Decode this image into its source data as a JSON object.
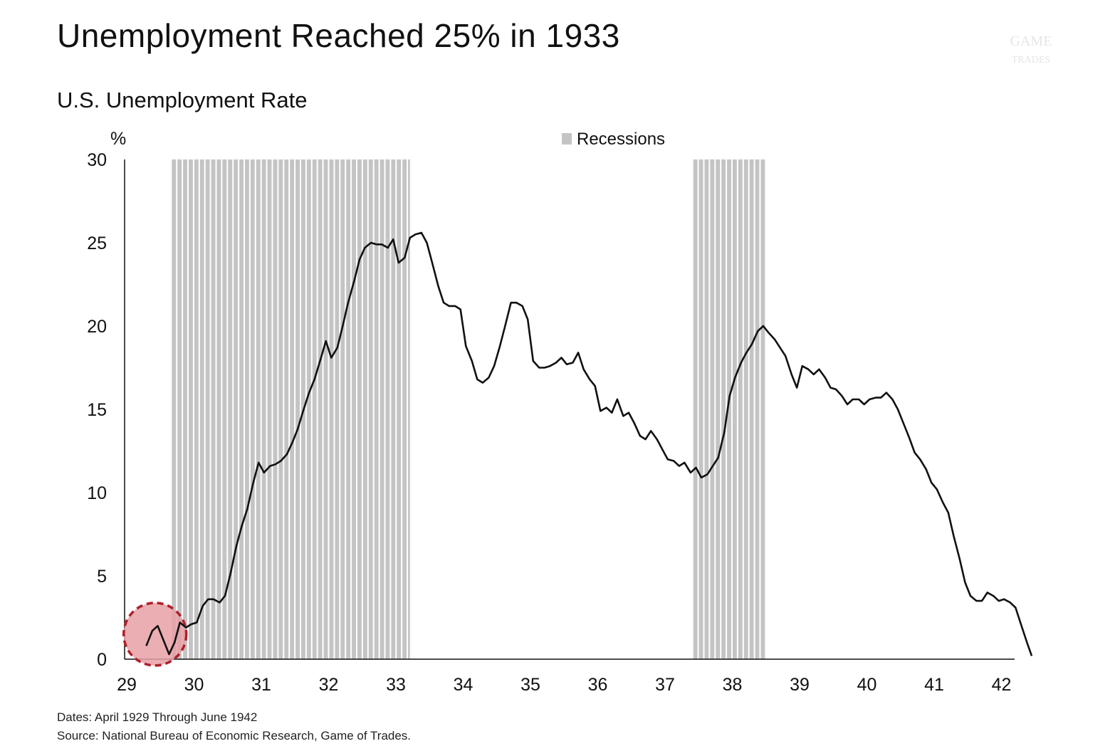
{
  "title": "Unemployment Reached 25% in 1933",
  "footer": {
    "dates": "Dates: April 1929 Through June 1942",
    "source": "Source: National Bureau of Economic Research, Game of Trades."
  },
  "watermark": {
    "text": "GAME OF TRADES"
  },
  "colors": {
    "line": "#111111",
    "recession": "#c4c4c4",
    "highlight_fill": "#e8a0a4",
    "highlight_stroke": "#b0202a"
  },
  "chart_data": {
    "type": "line",
    "title": "U.S. Unemployment Rate",
    "ylabel": "%",
    "ylim": [
      0,
      30
    ],
    "yticks": [
      "0",
      "5",
      "10",
      "15",
      "20",
      "25",
      "30"
    ],
    "xlim": [
      1929.25,
      1942.45
    ],
    "xticks": [
      {
        "label": "29",
        "value": 1929
      },
      {
        "label": "30",
        "value": 1930
      },
      {
        "label": "31",
        "value": 1931
      },
      {
        "label": "32",
        "value": 1932
      },
      {
        "label": "33",
        "value": 1933
      },
      {
        "label": "34",
        "value": 1934
      },
      {
        "label": "35",
        "value": 1935
      },
      {
        "label": "36",
        "value": 1936
      },
      {
        "label": "37",
        "value": 1937
      },
      {
        "label": "38",
        "value": 1938
      },
      {
        "label": "39",
        "value": 1939
      },
      {
        "label": "40",
        "value": 1940
      },
      {
        "label": "41",
        "value": 1941
      },
      {
        "label": "42",
        "value": 1942
      }
    ],
    "legend": {
      "entries": [
        "Recessions"
      ],
      "placement": "top-center"
    },
    "recessions": [
      {
        "start": 1929.67,
        "end": 1933.21
      },
      {
        "start": 1937.42,
        "end": 1938.5
      }
    ],
    "highlight": {
      "x": 1929.42,
      "y": 1.5,
      "note": "circled early 1929 low"
    },
    "series": [
      {
        "values": [
          [
            1929.29,
            0.8
          ],
          [
            1929.38,
            1.7
          ],
          [
            1929.46,
            2.0
          ],
          [
            1929.54,
            1.2
          ],
          [
            1929.63,
            0.3
          ],
          [
            1929.71,
            1.0
          ],
          [
            1929.79,
            2.2
          ],
          [
            1929.88,
            1.9
          ],
          [
            1929.96,
            2.1
          ],
          [
            1930.04,
            2.2
          ],
          [
            1930.13,
            3.2
          ],
          [
            1930.21,
            3.6
          ],
          [
            1930.29,
            3.6
          ],
          [
            1930.38,
            3.4
          ],
          [
            1930.46,
            3.8
          ],
          [
            1930.54,
            5.1
          ],
          [
            1930.63,
            6.8
          ],
          [
            1930.71,
            8.0
          ],
          [
            1930.79,
            9.0
          ],
          [
            1930.88,
            10.6
          ],
          [
            1930.96,
            11.8
          ],
          [
            1931.04,
            11.2
          ],
          [
            1931.13,
            11.6
          ],
          [
            1931.21,
            11.7
          ],
          [
            1931.29,
            11.9
          ],
          [
            1931.38,
            12.3
          ],
          [
            1931.46,
            13.0
          ],
          [
            1931.54,
            13.8
          ],
          [
            1931.63,
            15.0
          ],
          [
            1931.71,
            16.0
          ],
          [
            1931.79,
            16.8
          ],
          [
            1931.88,
            18.0
          ],
          [
            1931.96,
            19.1
          ],
          [
            1932.04,
            18.1
          ],
          [
            1932.13,
            18.7
          ],
          [
            1932.21,
            20.0
          ],
          [
            1932.29,
            21.4
          ],
          [
            1932.38,
            22.7
          ],
          [
            1932.46,
            24.0
          ],
          [
            1932.54,
            24.7
          ],
          [
            1932.63,
            25.0
          ],
          [
            1932.71,
            24.9
          ],
          [
            1932.79,
            24.9
          ],
          [
            1932.88,
            24.7
          ],
          [
            1932.96,
            25.2
          ],
          [
            1933.04,
            23.8
          ],
          [
            1933.13,
            24.1
          ],
          [
            1933.21,
            25.3
          ],
          [
            1933.29,
            25.5
          ],
          [
            1933.38,
            25.6
          ],
          [
            1933.46,
            25.0
          ],
          [
            1933.54,
            23.8
          ],
          [
            1933.63,
            22.4
          ],
          [
            1933.71,
            21.4
          ],
          [
            1933.79,
            21.2
          ],
          [
            1933.88,
            21.2
          ],
          [
            1933.96,
            21.0
          ],
          [
            1934.04,
            18.8
          ],
          [
            1934.13,
            17.9
          ],
          [
            1934.21,
            16.8
          ],
          [
            1934.29,
            16.6
          ],
          [
            1934.38,
            16.9
          ],
          [
            1934.46,
            17.6
          ],
          [
            1934.54,
            18.7
          ],
          [
            1934.63,
            20.1
          ],
          [
            1934.71,
            21.4
          ],
          [
            1934.79,
            21.4
          ],
          [
            1934.88,
            21.2
          ],
          [
            1934.96,
            20.4
          ],
          [
            1935.04,
            17.9
          ],
          [
            1935.13,
            17.5
          ],
          [
            1935.21,
            17.5
          ],
          [
            1935.29,
            17.6
          ],
          [
            1935.38,
            17.8
          ],
          [
            1935.46,
            18.1
          ],
          [
            1935.54,
            17.7
          ],
          [
            1935.63,
            17.8
          ],
          [
            1935.71,
            18.4
          ],
          [
            1935.79,
            17.4
          ],
          [
            1935.88,
            16.8
          ],
          [
            1935.96,
            16.4
          ],
          [
            1936.04,
            14.9
          ],
          [
            1936.13,
            15.1
          ],
          [
            1936.21,
            14.8
          ],
          [
            1936.29,
            15.6
          ],
          [
            1936.38,
            14.6
          ],
          [
            1936.46,
            14.8
          ],
          [
            1936.54,
            14.2
          ],
          [
            1936.63,
            13.4
          ],
          [
            1936.71,
            13.2
          ],
          [
            1936.79,
            13.7
          ],
          [
            1936.88,
            13.2
          ],
          [
            1936.96,
            12.6
          ],
          [
            1937.04,
            12.0
          ],
          [
            1937.13,
            11.9
          ],
          [
            1937.21,
            11.6
          ],
          [
            1937.29,
            11.8
          ],
          [
            1937.38,
            11.2
          ],
          [
            1937.46,
            11.5
          ],
          [
            1937.54,
            10.9
          ],
          [
            1937.63,
            11.1
          ],
          [
            1937.71,
            11.6
          ],
          [
            1937.79,
            12.1
          ],
          [
            1937.88,
            13.6
          ],
          [
            1937.96,
            15.8
          ],
          [
            1938.04,
            16.9
          ],
          [
            1938.13,
            17.8
          ],
          [
            1938.21,
            18.4
          ],
          [
            1938.29,
            18.9
          ],
          [
            1938.38,
            19.7
          ],
          [
            1938.46,
            20.0
          ],
          [
            1938.54,
            19.6
          ],
          [
            1938.63,
            19.2
          ],
          [
            1938.71,
            18.7
          ],
          [
            1938.79,
            18.2
          ],
          [
            1938.88,
            17.1
          ],
          [
            1938.96,
            16.3
          ],
          [
            1939.04,
            17.6
          ],
          [
            1939.13,
            17.4
          ],
          [
            1939.21,
            17.1
          ],
          [
            1939.29,
            17.4
          ],
          [
            1939.38,
            16.9
          ],
          [
            1939.46,
            16.3
          ],
          [
            1939.54,
            16.2
          ],
          [
            1939.63,
            15.8
          ],
          [
            1939.71,
            15.3
          ],
          [
            1939.79,
            15.6
          ],
          [
            1939.88,
            15.6
          ],
          [
            1939.96,
            15.3
          ],
          [
            1940.04,
            15.6
          ],
          [
            1940.13,
            15.7
          ],
          [
            1940.21,
            15.7
          ],
          [
            1940.29,
            16.0
          ],
          [
            1940.38,
            15.6
          ],
          [
            1940.46,
            15.0
          ],
          [
            1940.54,
            14.2
          ],
          [
            1940.63,
            13.3
          ],
          [
            1940.71,
            12.4
          ],
          [
            1940.79,
            12.0
          ],
          [
            1940.88,
            11.4
          ],
          [
            1940.96,
            10.6
          ],
          [
            1941.04,
            10.2
          ],
          [
            1941.13,
            9.4
          ],
          [
            1941.21,
            8.8
          ],
          [
            1941.29,
            7.4
          ],
          [
            1941.38,
            6.0
          ],
          [
            1941.46,
            4.6
          ],
          [
            1941.54,
            3.8
          ],
          [
            1941.63,
            3.5
          ],
          [
            1941.71,
            3.5
          ],
          [
            1941.79,
            4.0
          ],
          [
            1941.88,
            3.8
          ],
          [
            1941.96,
            3.5
          ],
          [
            1942.04,
            3.6
          ],
          [
            1942.13,
            3.4
          ],
          [
            1942.21,
            3.1
          ],
          [
            1942.29,
            2.1
          ],
          [
            1942.38,
            1.0
          ],
          [
            1942.45,
            0.2
          ]
        ]
      }
    ]
  }
}
